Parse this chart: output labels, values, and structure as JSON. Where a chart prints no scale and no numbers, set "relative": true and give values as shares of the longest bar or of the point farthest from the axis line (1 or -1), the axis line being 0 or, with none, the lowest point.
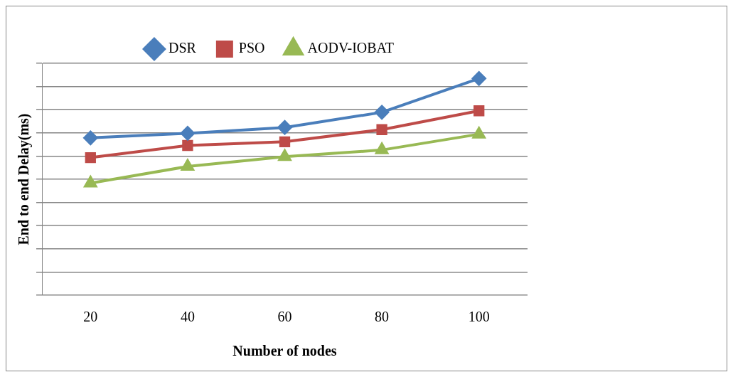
{
  "chart_data": {
    "type": "line",
    "xlabel": "Number of nodes",
    "ylabel": "End to end Delay(ms)",
    "categories": [
      "20",
      "40",
      "60",
      "80",
      "100"
    ],
    "relative": true,
    "grid": "y",
    "legend": "top",
    "series": [
      {
        "name": "DSR",
        "color": "#4a7ebb",
        "marker": "diamond",
        "values": [
          0.726,
          0.747,
          0.774,
          0.844,
          1
        ]
      },
      {
        "name": "PSO",
        "color": "#be4b48",
        "marker": "square",
        "values": [
          0.635,
          0.691,
          0.708,
          0.764,
          0.851
        ]
      },
      {
        "name": "AODV-IOBAT",
        "color": "#98b954",
        "marker": "triangle",
        "values": [
          0.517,
          0.594,
          0.639,
          0.67,
          0.743
        ]
      }
    ]
  }
}
